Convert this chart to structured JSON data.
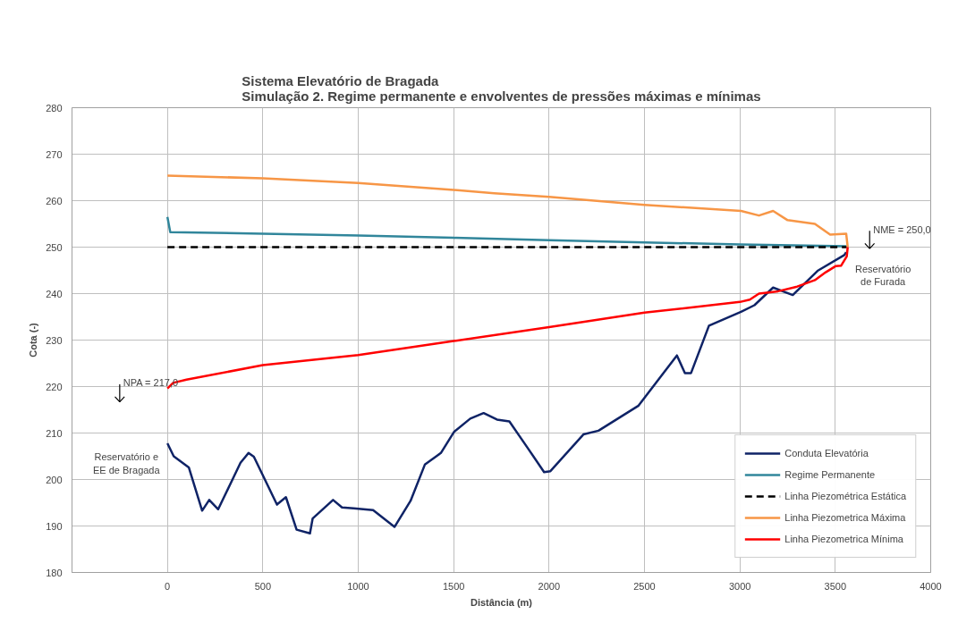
{
  "chart_data": {
    "type": "line",
    "title": "Sistema Elevatório de Bragada",
    "subtitle": "Simulação 2. Regime permanente e envolventes de pressões máximas e mínimas",
    "xlabel": "Distância (m)",
    "ylabel": "Cota (-)",
    "xlim": [
      -500,
      4000
    ],
    "xticks": [
      0,
      500,
      1000,
      1500,
      2000,
      2500,
      3000,
      3500,
      4000
    ],
    "ylim": [
      180,
      280
    ],
    "yticks": [
      180,
      190,
      200,
      210,
      220,
      230,
      240,
      250,
      260,
      270,
      280
    ],
    "grid": true,
    "legend": "bottom right",
    "series": [
      {
        "name": "Conduta Elevatória",
        "color": "#0f2366",
        "line_style": "solid",
        "x": [
          0,
          33,
          112,
          182,
          219,
          266,
          383,
          425,
          453,
          574,
          621,
          677,
          747,
          761,
          868,
          915,
          976,
          1078,
          1190,
          1274,
          1349,
          1433,
          1503,
          1587,
          1657,
          1727,
          1792,
          1886,
          1974,
          2007,
          2180,
          2259,
          2469,
          2670,
          2712,
          2744,
          2838,
          3006,
          3076,
          3174,
          3277,
          3407,
          3547,
          3557
        ],
        "values": [
          207.8,
          205,
          202.6,
          193.3,
          195.6,
          193.6,
          203.6,
          205.7,
          204.9,
          194.6,
          196.2,
          189.2,
          188.4,
          191.6,
          195.6,
          194,
          193.8,
          193.4,
          189.8,
          195.4,
          203.2,
          205.7,
          210.3,
          213.1,
          214.3,
          212.9,
          212.5,
          206.9,
          201.6,
          201.8,
          209.7,
          210.5,
          215.9,
          226.7,
          222.9,
          222.9,
          233.1,
          236.1,
          237.5,
          241.3,
          239.7,
          244.9,
          248.3,
          248.9
        ]
      },
      {
        "name": "Regime Permanente",
        "color": "#31869b",
        "line_style": "solid",
        "x": [
          0,
          15,
          500,
          1000,
          1500,
          2000,
          2500,
          3000,
          3560
        ],
        "values": [
          256.5,
          253.2,
          252.9,
          252.5,
          252,
          251.5,
          251,
          250.6,
          250.2
        ]
      },
      {
        "name": "Linha Piezométrica Estática",
        "color": "#000000",
        "line_style": "dashed",
        "x": [
          0,
          3560
        ],
        "values": [
          250,
          250
        ]
      },
      {
        "name": "Linha Piezometrica Máxima",
        "color": "#f79646",
        "line_style": "solid",
        "x": [
          0,
          500,
          1000,
          1500,
          1713,
          2000,
          2500,
          3006,
          3100,
          3174,
          3250,
          3393,
          3473,
          3557,
          3565
        ],
        "values": [
          265.4,
          264.8,
          263.8,
          262.3,
          261.6,
          260.8,
          259.1,
          257.8,
          256.8,
          257.8,
          255.8,
          255,
          252.7,
          252.9,
          250
        ]
      },
      {
        "name": "Linha Piezometrica Mínima",
        "color": "#ff0000",
        "line_style": "solid",
        "x": [
          0,
          30,
          100,
          500,
          1000,
          1500,
          2000,
          2500,
          3000,
          3052,
          3100,
          3200,
          3300,
          3393,
          3450,
          3501,
          3530,
          3560,
          3565
        ],
        "values": [
          219.6,
          220.8,
          221.5,
          224.6,
          226.8,
          229.8,
          232.8,
          235.9,
          238.2,
          238.7,
          240,
          240.5,
          241.5,
          242.9,
          244.6,
          245.9,
          246,
          248,
          250
        ]
      }
    ],
    "annotations": [
      {
        "text": "NPA = 217,0",
        "x": -250,
        "y": 217
      },
      "Reservatório e\nEE de Bragada",
      {
        "text": "NME = 250,0",
        "x": 3680,
        "y": 250
      },
      "Reservatório\nde Furada"
    ]
  }
}
